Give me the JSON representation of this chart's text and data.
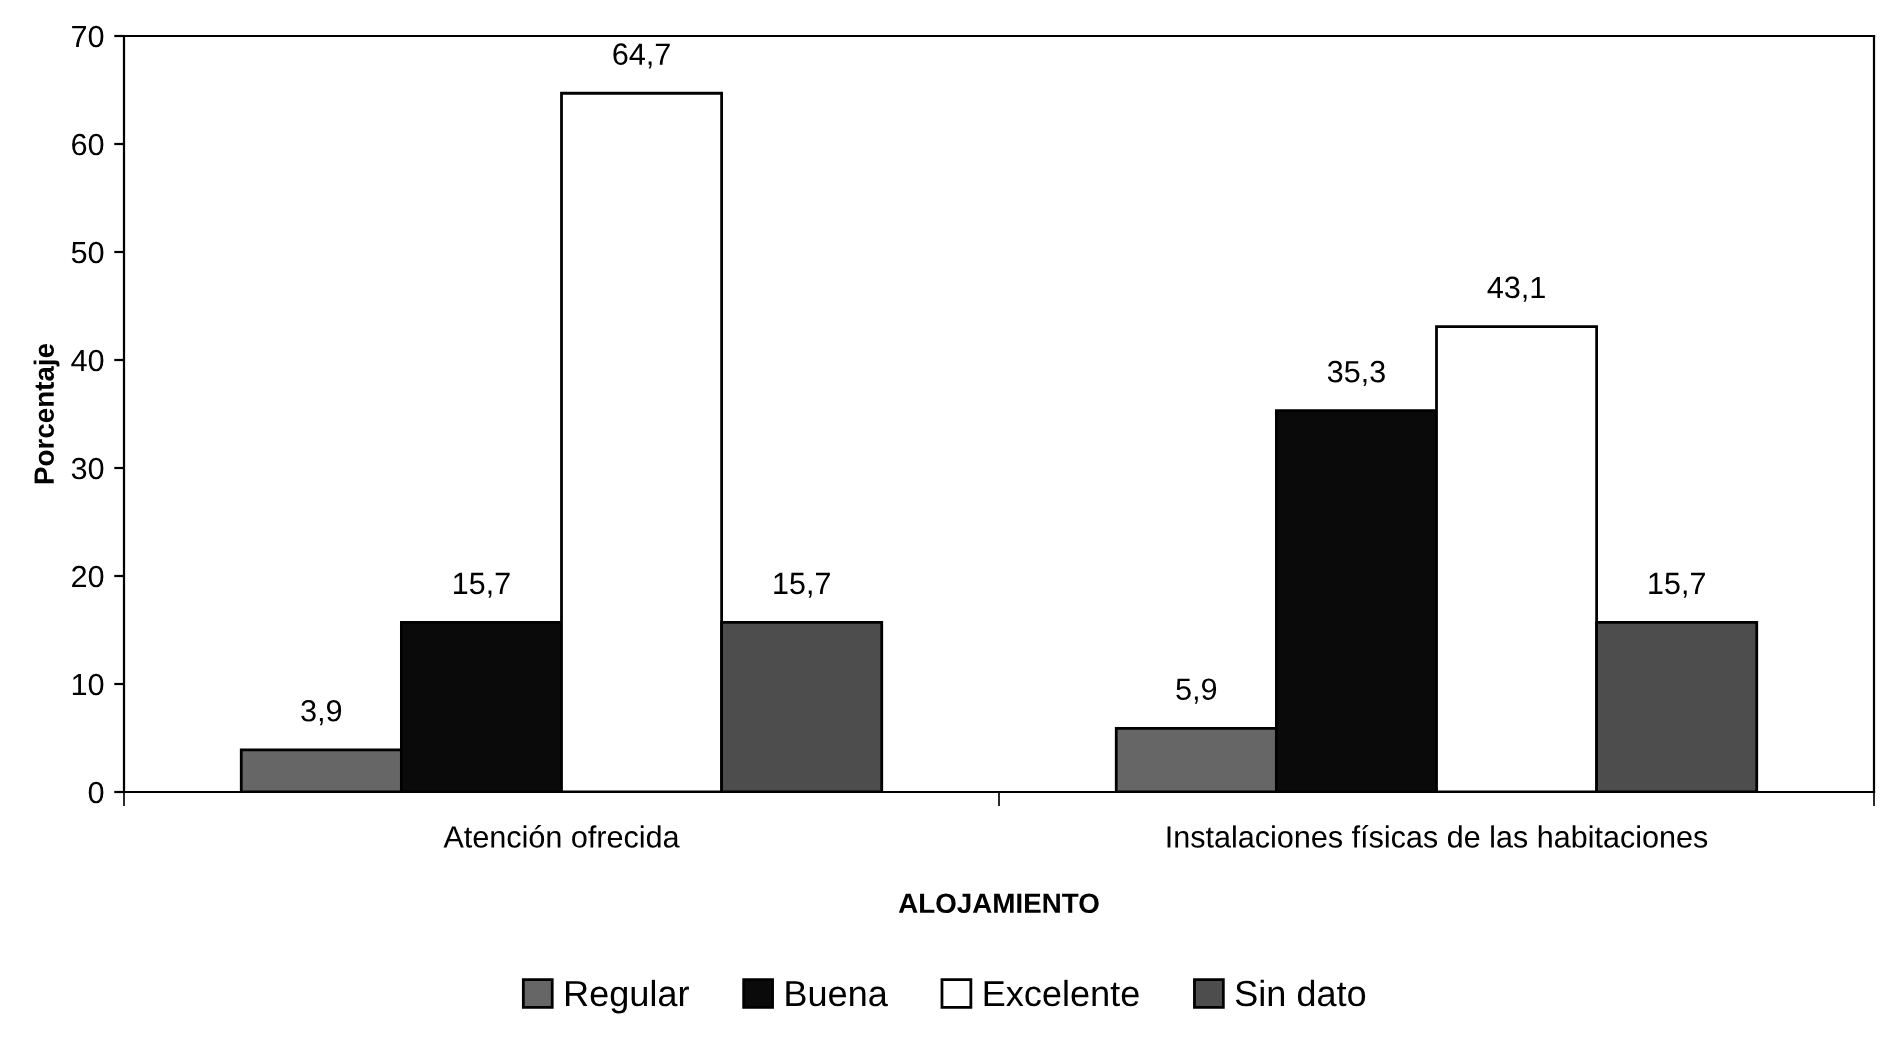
{
  "chart_data": {
    "type": "bar",
    "xlabel": "ALOJAMIENTO",
    "ylabel": "Porcentaje",
    "categories": [
      "Atención ofrecida",
      "Instalaciones físicas de las habitaciones"
    ],
    "series": [
      {
        "name": "Regular",
        "color": "#666666",
        "values": [
          3.9,
          5.9
        ],
        "value_labels": [
          "3,9",
          "5,9"
        ]
      },
      {
        "name": "Buena",
        "color": "#0a0a0a",
        "values": [
          15.7,
          35.3
        ],
        "value_labels": [
          "15,7",
          "35,3"
        ]
      },
      {
        "name": "Excelente",
        "color": "#ffffff",
        "values": [
          64.7,
          43.1
        ],
        "value_labels": [
          "64,7",
          "43,1"
        ]
      },
      {
        "name": "Sin dato",
        "color": "#4d4d4d",
        "values": [
          15.7,
          15.7
        ],
        "value_labels": [
          "15,7",
          "15,7"
        ]
      }
    ],
    "ylim": [
      0,
      70
    ],
    "yticks": [
      0,
      10,
      20,
      30,
      40,
      50,
      60,
      70
    ],
    "grid": false,
    "legend": "bottom"
  }
}
